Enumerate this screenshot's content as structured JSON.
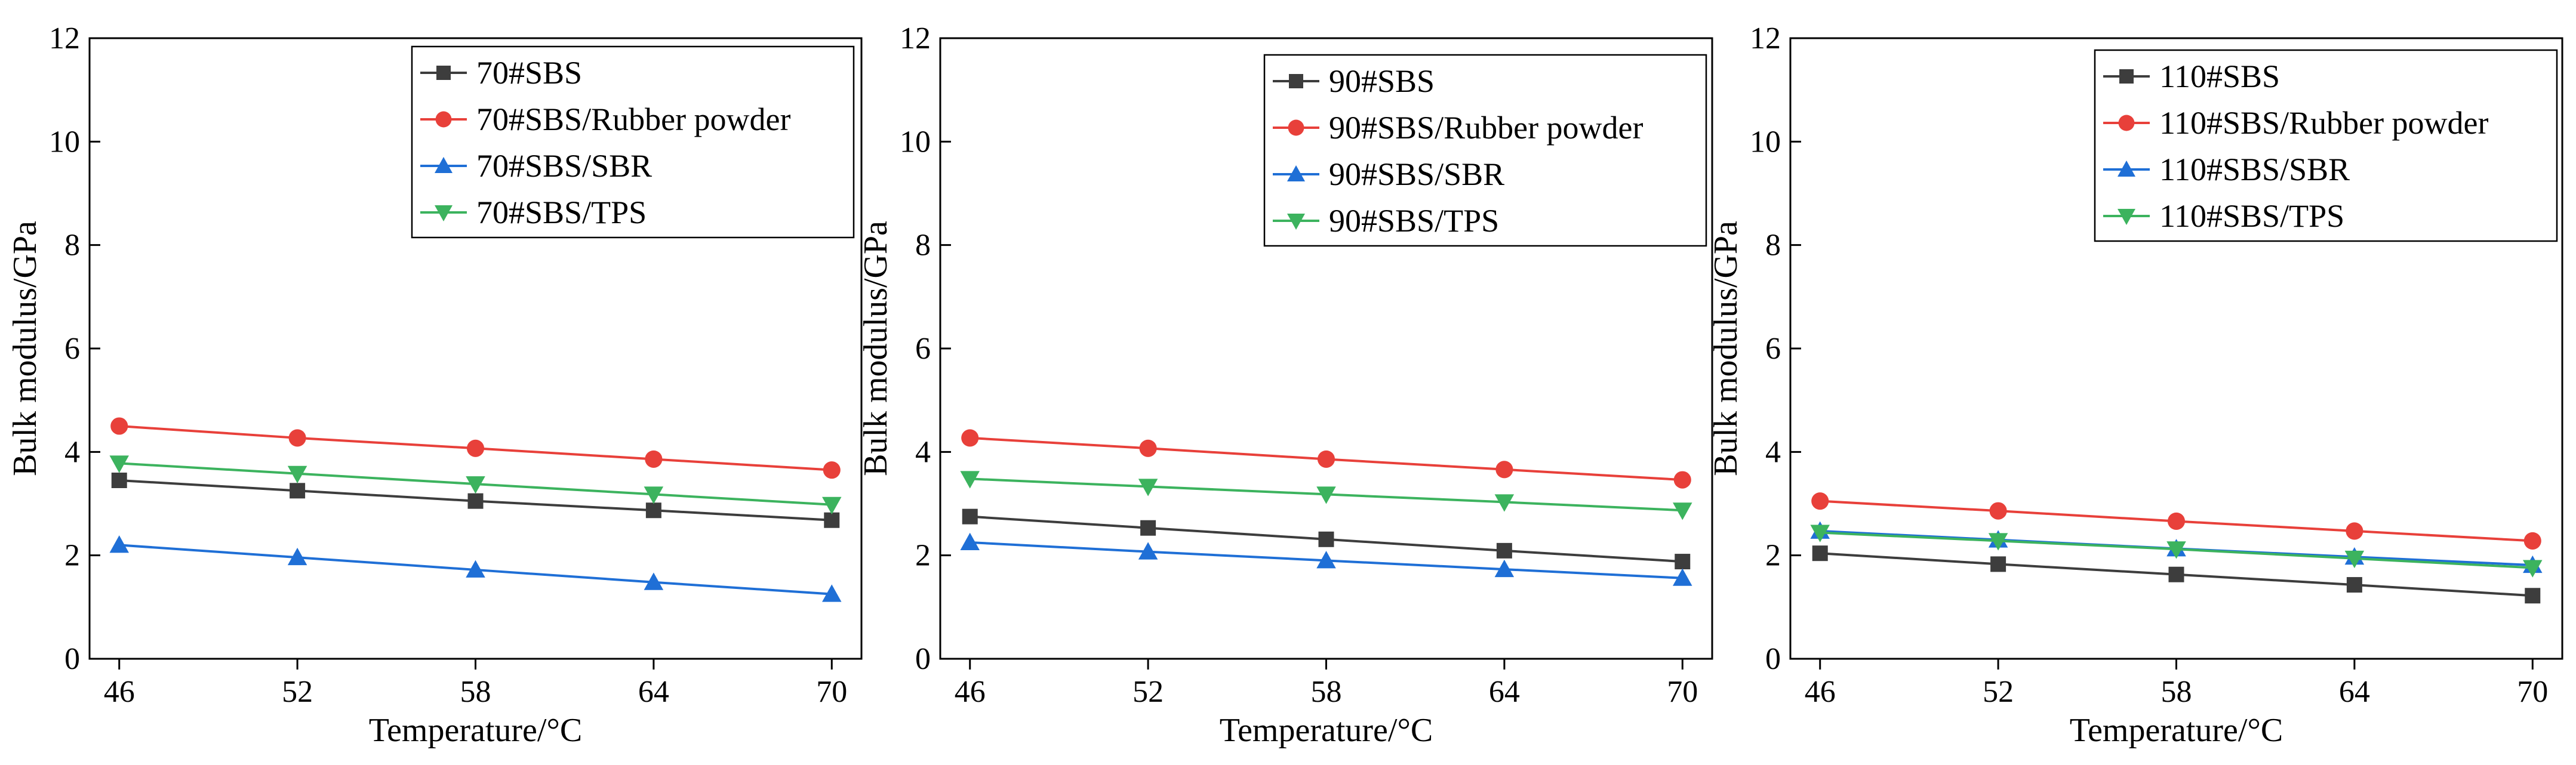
{
  "chart_data": [
    {
      "type": "line",
      "title": "",
      "xlabel": "Temperature/°C",
      "ylabel": "Bulk modulus/GPa",
      "x": [
        46,
        52,
        58,
        64,
        70
      ],
      "xticks": [
        "46",
        "52",
        "58",
        "64",
        "70"
      ],
      "xlim": [
        45,
        71
      ],
      "ylim": [
        0,
        12
      ],
      "yticks": [
        "0",
        "2",
        "4",
        "6",
        "8",
        "10",
        "12"
      ],
      "grid": false,
      "legend_position": "top-right",
      "series": [
        {
          "name": "70#SBS",
          "marker": "square",
          "color": "#3d3d3d",
          "values": [
            3.45,
            3.25,
            3.05,
            2.87,
            2.68
          ]
        },
        {
          "name": "70#SBS/Rubber powder",
          "marker": "circle",
          "color": "#e8403a",
          "values": [
            4.5,
            4.27,
            4.07,
            3.86,
            3.65
          ]
        },
        {
          "name": "70#SBS/SBR",
          "marker": "triangle-up",
          "color": "#1f6fd6",
          "values": [
            2.2,
            1.96,
            1.72,
            1.48,
            1.25
          ]
        },
        {
          "name": "70#SBS/TPS",
          "marker": "triangle-down",
          "color": "#3cb35e",
          "values": [
            3.78,
            3.58,
            3.38,
            3.18,
            2.98
          ]
        }
      ]
    },
    {
      "type": "line",
      "title": "",
      "xlabel": "Temperature/°C",
      "ylabel": "Bulk modulus/GPa",
      "x": [
        46,
        52,
        58,
        64,
        70
      ],
      "xticks": [
        "46",
        "52",
        "58",
        "64",
        "70"
      ],
      "xlim": [
        45,
        71
      ],
      "ylim": [
        0,
        12
      ],
      "yticks": [
        "0",
        "2",
        "4",
        "6",
        "8",
        "10",
        "12"
      ],
      "grid": false,
      "legend_position": "top-right",
      "series": [
        {
          "name": "90#SBS",
          "marker": "square",
          "color": "#3d3d3d",
          "values": [
            2.75,
            2.53,
            2.31,
            2.09,
            1.88
          ]
        },
        {
          "name": "90#SBS/Rubber powder",
          "marker": "circle",
          "color": "#e8403a",
          "values": [
            4.27,
            4.07,
            3.86,
            3.66,
            3.46
          ]
        },
        {
          "name": "90#SBS/SBR",
          "marker": "triangle-up",
          "color": "#1f6fd6",
          "values": [
            2.25,
            2.07,
            1.9,
            1.73,
            1.56
          ]
        },
        {
          "name": "90#SBS/TPS",
          "marker": "triangle-down",
          "color": "#3cb35e",
          "values": [
            3.48,
            3.33,
            3.18,
            3.03,
            2.87
          ]
        }
      ]
    },
    {
      "type": "line",
      "title": "",
      "xlabel": "Temperature/°C",
      "ylabel": "Bulk modulus/GPa",
      "x": [
        46,
        52,
        58,
        64,
        70
      ],
      "xticks": [
        "46",
        "52",
        "58",
        "64",
        "70"
      ],
      "xlim": [
        45,
        71
      ],
      "ylim": [
        0,
        12
      ],
      "yticks": [
        "0",
        "2",
        "4",
        "6",
        "8",
        "10",
        "12"
      ],
      "grid": false,
      "legend_position": "top-right",
      "series": [
        {
          "name": "110#SBS",
          "marker": "square",
          "color": "#3d3d3d",
          "values": [
            2.04,
            1.83,
            1.63,
            1.43,
            1.22
          ]
        },
        {
          "name": "110#SBS/Rubber powder",
          "marker": "circle",
          "color": "#e8403a",
          "values": [
            3.05,
            2.86,
            2.66,
            2.47,
            2.28
          ]
        },
        {
          "name": "110#SBS/SBR",
          "marker": "triangle-up",
          "color": "#1f6fd6",
          "values": [
            2.47,
            2.3,
            2.13,
            1.97,
            1.81
          ]
        },
        {
          "name": "110#SBS/TPS",
          "marker": "triangle-down",
          "color": "#3cb35e",
          "values": [
            2.44,
            2.28,
            2.12,
            1.94,
            1.76
          ]
        }
      ]
    }
  ]
}
